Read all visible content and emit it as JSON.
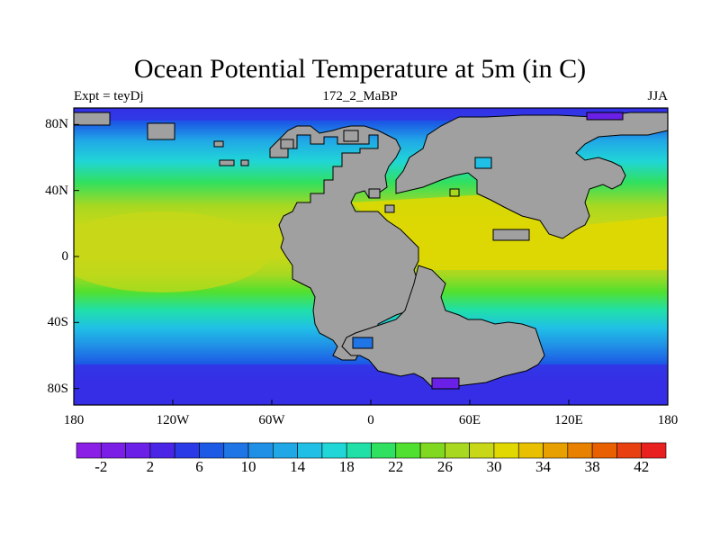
{
  "title": "Ocean Potential Temperature at 5m (in C)",
  "subtitle_left": "Expt = teyDj",
  "subtitle_center": "172_2_MaBP",
  "subtitle_right": "JJA",
  "map": {
    "lon_range": [
      -180,
      180
    ],
    "lat_range": [
      -90,
      90
    ],
    "land_color": "#a0a0a0",
    "coastline_color": "#000000",
    "lat_ticks": [
      {
        "value": 80,
        "label": "80N"
      },
      {
        "value": 40,
        "label": "40N"
      },
      {
        "value": 0,
        "label": "0"
      },
      {
        "value": -40,
        "label": "40S"
      },
      {
        "value": -80,
        "label": "80S"
      }
    ],
    "lon_ticks": [
      {
        "value": -180,
        "label": "180"
      },
      {
        "value": -120,
        "label": "120W"
      },
      {
        "value": -60,
        "label": "60W"
      },
      {
        "value": 0,
        "label": "0"
      },
      {
        "value": 60,
        "label": "60E"
      },
      {
        "value": 120,
        "label": "120E"
      },
      {
        "value": 180,
        "label": "180"
      }
    ]
  },
  "colorbar": {
    "colors": [
      "#8b1fe6",
      "#7b1fe6",
      "#6a20e6",
      "#4a25e6",
      "#2a3ae6",
      "#1c5ae6",
      "#1f75e6",
      "#2090e6",
      "#20a8e6",
      "#20c0e6",
      "#20d6d6",
      "#20e0a8",
      "#30e060",
      "#50e030",
      "#80d820",
      "#a8d820",
      "#c8d818",
      "#e0d800",
      "#e8c000",
      "#e8a000",
      "#e88000",
      "#e86000",
      "#e84010",
      "#e82020"
    ],
    "tick_labels": [
      "-2",
      "2",
      "6",
      "10",
      "14",
      "18",
      "22",
      "26",
      "30",
      "34",
      "38",
      "42"
    ]
  }
}
